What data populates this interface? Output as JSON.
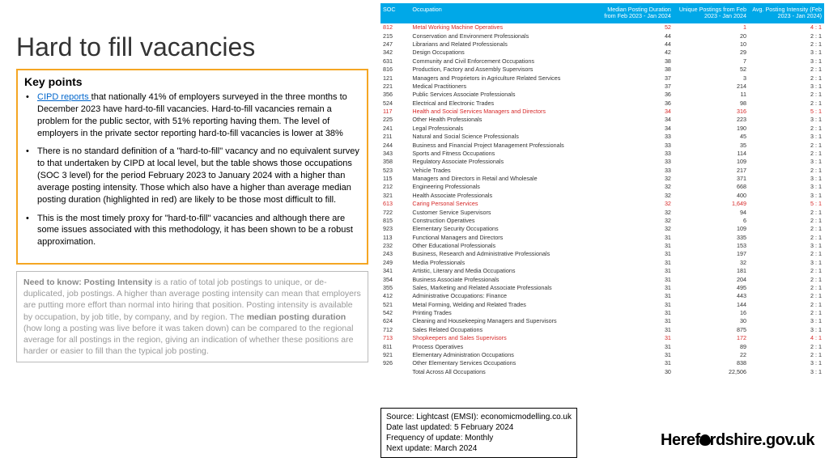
{
  "title": "Hard to fill vacancies",
  "keyPoints": {
    "heading": "Key points",
    "linkText": "CIPD reports ",
    "b1rest": "that nationally 41% of employers surveyed in the three months to December 2023 have hard-to-fill vacancies. Hard-to-fill vacancies remain a problem for the public sector, with 51% reporting having them. The level of employers in the private sector reporting hard-to-fill vacancies is lower at 38%",
    "b2": "There is no standard definition of a \"hard-to-fill\" vacancy and no equivalent survey to that undertaken by CIPD at local level, but the table shows those occupations (SOC 3 level) for the period February 2023 to January 2024 with a higher than average posting intensity.  Those which also have a higher than average median posting duration (highlighted in red) are likely to be those most difficult to fill.",
    "b3": "This is the most timely proxy for \"hard-to-fill\" vacancies and although there are some issues associated with this methodology, it has been shown to be a robust approximation."
  },
  "needToKnow": {
    "label": "Need to know: Posting Intensity",
    "text": " is a ratio of total job postings to unique, or de-duplicated, job postings. A higher than average posting intensity can mean that employers are putting more effort than normal into hiring that position. Posting intensity is available by occupation, by job title, by company, and by region.  The ",
    "bold2": "median posting duration",
    "text2": " (how long a posting was live before it was taken down) can be compared to the regional average for all postings in the region, giving an indication of whether these positions are harder or easier to fill than the typical job posting."
  },
  "table": {
    "headers": {
      "c1": "SOC",
      "c2": "Occupation",
      "c3": "Median Posting Duration from Feb 2023 - Jan 2024",
      "c4": "Unique Postings from Feb 2023 - Jan 2024",
      "c5": "Avg. Posting Intensity (Feb 2023 - Jan 2024)"
    },
    "rows": [
      {
        "soc": "812",
        "occ": "Metal Working Machine Operatives",
        "dur": "52",
        "post": "1",
        "int": "4 : 1",
        "hl": true
      },
      {
        "soc": "215",
        "occ": "Conservation and Environment Professionals",
        "dur": "44",
        "post": "20",
        "int": "2 : 1"
      },
      {
        "soc": "247",
        "occ": "Librarians and Related Professionals",
        "dur": "44",
        "post": "10",
        "int": "2 : 1"
      },
      {
        "soc": "342",
        "occ": "Design Occupations",
        "dur": "42",
        "post": "29",
        "int": "3 : 1"
      },
      {
        "soc": "631",
        "occ": "Community and Civil Enforcement Occupations",
        "dur": "38",
        "post": "7",
        "int": "3 : 1"
      },
      {
        "soc": "816",
        "occ": "Production, Factory and Assembly Supervisors",
        "dur": "38",
        "post": "52",
        "int": "2 : 1"
      },
      {
        "soc": "121",
        "occ": "Managers and Proprietors in Agriculture Related Services",
        "dur": "37",
        "post": "3",
        "int": "2 : 1"
      },
      {
        "soc": "221",
        "occ": "Medical Practitioners",
        "dur": "37",
        "post": "214",
        "int": "3 : 1"
      },
      {
        "soc": "356",
        "occ": "Public Services Associate Professionals",
        "dur": "36",
        "post": "11",
        "int": "2 : 1"
      },
      {
        "soc": "524",
        "occ": "Electrical and Electronic Trades",
        "dur": "36",
        "post": "98",
        "int": "2 : 1"
      },
      {
        "soc": "117",
        "occ": "Health and Social Services Managers and Directors",
        "dur": "34",
        "post": "316",
        "int": "5 : 1",
        "hl": true
      },
      {
        "soc": "225",
        "occ": "Other Health Professionals",
        "dur": "34",
        "post": "223",
        "int": "3 : 1"
      },
      {
        "soc": "241",
        "occ": "Legal Professionals",
        "dur": "34",
        "post": "190",
        "int": "2 : 1"
      },
      {
        "soc": "211",
        "occ": "Natural and Social Science Professionals",
        "dur": "33",
        "post": "45",
        "int": "3 : 1"
      },
      {
        "soc": "244",
        "occ": "Business and Financial Project Management Professionals",
        "dur": "33",
        "post": "35",
        "int": "2 : 1"
      },
      {
        "soc": "343",
        "occ": "Sports and Fitness Occupations",
        "dur": "33",
        "post": "114",
        "int": "2 : 1"
      },
      {
        "soc": "358",
        "occ": "Regulatory Associate Professionals",
        "dur": "33",
        "post": "109",
        "int": "3 : 1"
      },
      {
        "soc": "523",
        "occ": "Vehicle Trades",
        "dur": "33",
        "post": "217",
        "int": "2 : 1"
      },
      {
        "soc": "115",
        "occ": "Managers and Directors in Retail and Wholesale",
        "dur": "32",
        "post": "371",
        "int": "3 : 1"
      },
      {
        "soc": "212",
        "occ": "Engineering Professionals",
        "dur": "32",
        "post": "668",
        "int": "3 : 1"
      },
      {
        "soc": "321",
        "occ": "Health Associate Professionals",
        "dur": "32",
        "post": "400",
        "int": "3 : 1"
      },
      {
        "soc": "613",
        "occ": "Caring Personal Services",
        "dur": "32",
        "post": "1,649",
        "int": "5 : 1",
        "hl": true
      },
      {
        "soc": "722",
        "occ": "Customer Service Supervisors",
        "dur": "32",
        "post": "94",
        "int": "2 : 1"
      },
      {
        "soc": "815",
        "occ": "Construction Operatives",
        "dur": "32",
        "post": "6",
        "int": "2 : 1"
      },
      {
        "soc": "923",
        "occ": "Elementary Security Occupations",
        "dur": "32",
        "post": "109",
        "int": "2 : 1"
      },
      {
        "soc": "113",
        "occ": "Functional Managers and Directors",
        "dur": "31",
        "post": "335",
        "int": "2 : 1"
      },
      {
        "soc": "232",
        "occ": "Other Educational Professionals",
        "dur": "31",
        "post": "153",
        "int": "3 : 1"
      },
      {
        "soc": "243",
        "occ": "Business, Research and Administrative Professionals",
        "dur": "31",
        "post": "197",
        "int": "2 : 1"
      },
      {
        "soc": "249",
        "occ": "Media Professionals",
        "dur": "31",
        "post": "32",
        "int": "3 : 1"
      },
      {
        "soc": "341",
        "occ": "Artistic, Literary and Media Occupations",
        "dur": "31",
        "post": "181",
        "int": "2 : 1"
      },
      {
        "soc": "354",
        "occ": "Business Associate Professionals",
        "dur": "31",
        "post": "204",
        "int": "2 : 1"
      },
      {
        "soc": "355",
        "occ": "Sales, Marketing and Related Associate Professionals",
        "dur": "31",
        "post": "495",
        "int": "2 : 1"
      },
      {
        "soc": "412",
        "occ": "Administrative Occupations: Finance",
        "dur": "31",
        "post": "443",
        "int": "2 : 1"
      },
      {
        "soc": "521",
        "occ": "Metal Forming, Welding and Related Trades",
        "dur": "31",
        "post": "144",
        "int": "2 : 1"
      },
      {
        "soc": "542",
        "occ": "Printing Trades",
        "dur": "31",
        "post": "16",
        "int": "2 : 1"
      },
      {
        "soc": "624",
        "occ": "Cleaning and Housekeeping Managers and Supervisors",
        "dur": "31",
        "post": "30",
        "int": "3 : 1"
      },
      {
        "soc": "712",
        "occ": "Sales Related Occupations",
        "dur": "31",
        "post": "875",
        "int": "3 : 1"
      },
      {
        "soc": "713",
        "occ": "Shopkeepers and Sales Supervisors",
        "dur": "31",
        "post": "172",
        "int": "4 : 1",
        "hl": true
      },
      {
        "soc": "811",
        "occ": "Process Operatives",
        "dur": "31",
        "post": "89",
        "int": "2 : 1"
      },
      {
        "soc": "921",
        "occ": "Elementary Administration Occupations",
        "dur": "31",
        "post": "22",
        "int": "2 : 1"
      },
      {
        "soc": "926",
        "occ": "Other Elementary Services Occupations",
        "dur": "31",
        "post": "838",
        "int": "3 : 1"
      },
      {
        "soc": "",
        "occ": "Total Across All Occupations",
        "dur": "30",
        "post": "22,506",
        "int": "3 : 1"
      }
    ]
  },
  "source": {
    "l1": "Source: Lightcast (EMSI): economicmodelling.co.uk",
    "l2": "Date last updated: 5 February 2024",
    "l3": "Frequency of update: Monthly",
    "l4": "Next update: March 2024"
  },
  "logo": {
    "p1": "Heref",
    "p2": "rdshire.gov.uk"
  }
}
